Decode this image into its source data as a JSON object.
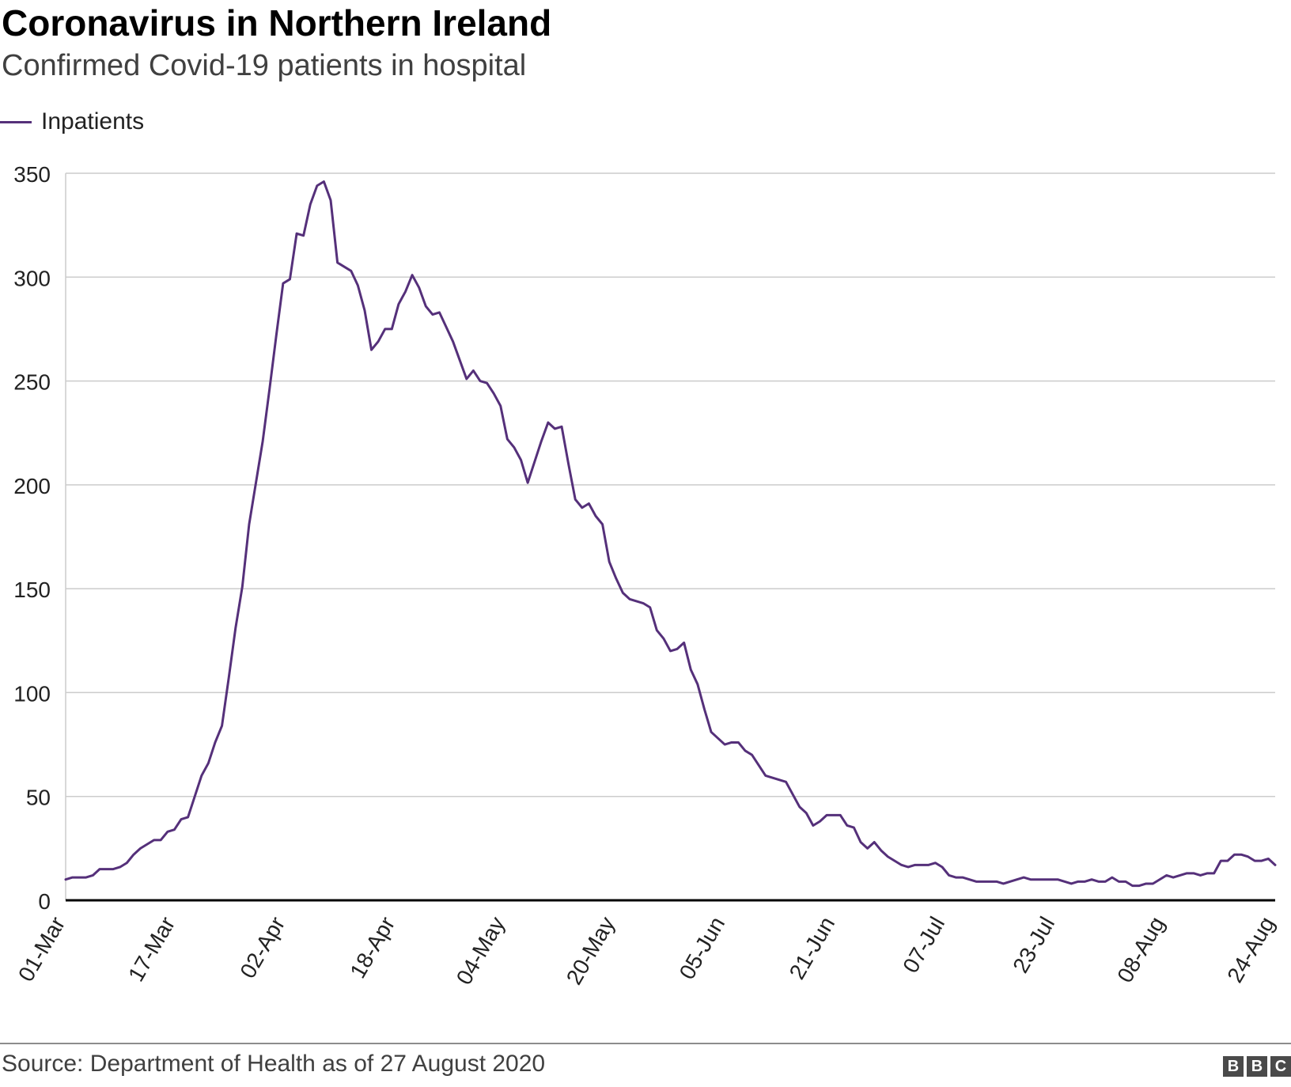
{
  "title": "Coronavirus in Northern Ireland",
  "subtitle": "Confirmed Covid-19 patients in hospital",
  "source": "Source: Department of Health as of 27 August 2020",
  "logo": [
    "B",
    "B",
    "C"
  ],
  "colors": {
    "line": "#55307a",
    "grid": "#cccccc",
    "axis": "#000000",
    "text": "#222222"
  },
  "chart_data": {
    "type": "line",
    "title": "Coronavirus in Northern Ireland",
    "subtitle": "Confirmed Covid-19 patients in hospital",
    "xlabel": "",
    "ylabel": "",
    "ylim": [
      0,
      350
    ],
    "yticks": [
      0,
      50,
      100,
      150,
      200,
      250,
      300,
      350
    ],
    "xticks": [
      "01-Mar",
      "17-Mar",
      "02-Apr",
      "18-Apr",
      "04-May",
      "20-May",
      "05-Jun",
      "21-Jun",
      "07-Jul",
      "23-Jul",
      "08-Aug",
      "24-Aug"
    ],
    "grid": true,
    "legend_position": "top-left",
    "x_start": "2020-03-01",
    "x_end": "2020-08-24",
    "series": [
      {
        "name": "Inpatients",
        "color": "#55307a",
        "values": [
          10,
          11,
          11,
          11,
          12,
          15,
          15,
          15,
          16,
          18,
          22,
          25,
          27,
          29,
          29,
          33,
          34,
          39,
          40,
          50,
          60,
          66,
          76,
          84,
          107,
          131,
          151,
          181,
          201,
          221,
          246,
          272,
          297,
          299,
          321,
          320,
          335,
          344,
          346,
          337,
          307,
          305,
          303,
          296,
          284,
          265,
          269,
          275,
          275,
          287,
          293,
          301,
          295,
          286,
          282,
          283,
          276,
          269,
          260,
          251,
          255,
          250,
          249,
          244,
          238,
          222,
          218,
          212,
          201,
          211,
          221,
          230,
          227,
          228,
          210,
          193,
          189,
          191,
          185,
          181,
          163,
          155,
          148,
          145,
          144,
          143,
          141,
          130,
          126,
          120,
          121,
          124,
          111,
          104,
          92,
          81,
          78,
          75,
          76,
          76,
          72,
          70,
          65,
          60,
          59,
          58,
          57,
          51,
          45,
          42,
          36,
          38,
          41,
          41,
          41,
          36,
          35,
          28,
          25,
          28,
          24,
          21,
          19,
          17,
          16,
          17,
          17,
          17,
          18,
          16,
          12,
          11,
          11,
          10,
          9,
          9,
          9,
          9,
          8,
          9,
          10,
          11,
          10,
          10,
          10,
          10,
          10,
          9,
          8,
          9,
          9,
          10,
          9,
          9,
          11,
          9,
          9,
          7,
          7,
          8,
          8,
          10,
          12,
          11,
          12,
          13,
          13,
          12,
          13,
          13,
          19,
          19,
          22,
          22,
          21,
          19,
          19,
          20,
          17
        ]
      }
    ]
  }
}
